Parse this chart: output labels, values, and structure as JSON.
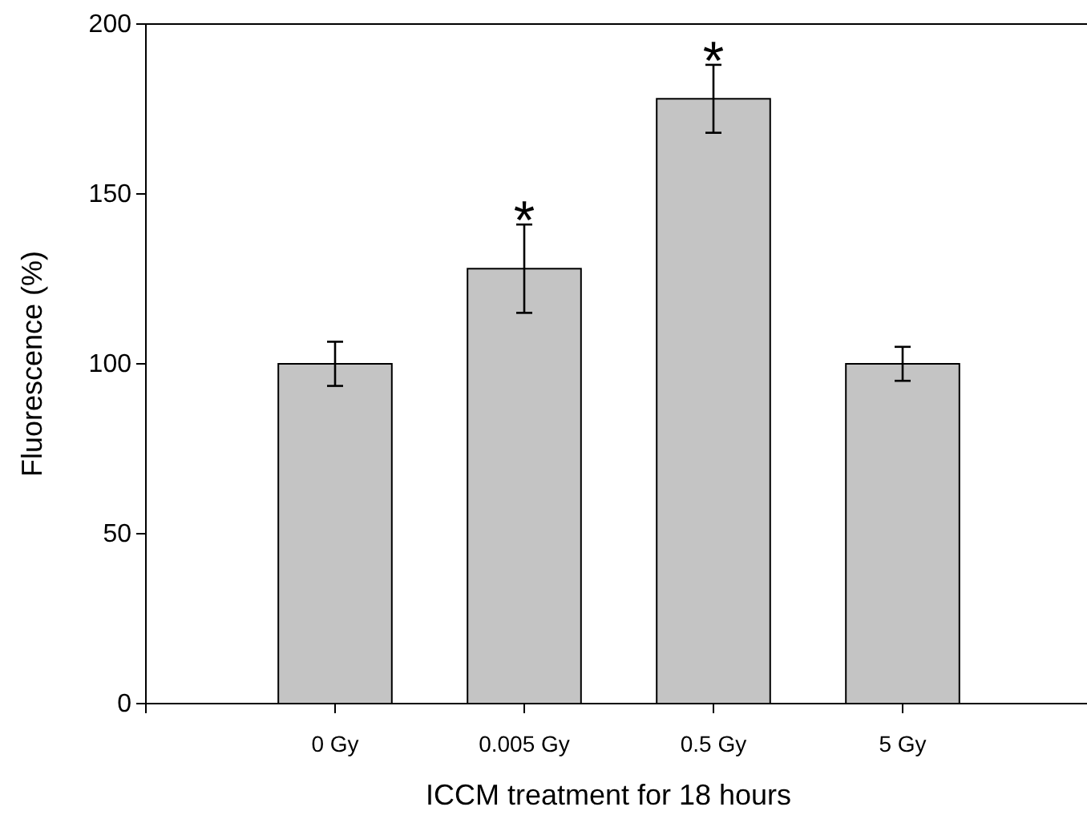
{
  "chart_data": {
    "type": "bar",
    "xlabel": "ICCM treatment for 18 hours",
    "ylabel": "Fluorescence (%)",
    "categories": [
      "0 Gy",
      "0.005 Gy",
      "0.5 Gy",
      "5 Gy"
    ],
    "values": [
      100,
      128,
      178,
      100
    ],
    "errors": [
      6.5,
      13,
      10,
      5
    ],
    "color": "#c4c4c4",
    "ylim": [
      0,
      200
    ],
    "yticks": [
      0,
      50,
      100,
      150,
      200
    ],
    "annotations": [
      {
        "text": "*",
        "x": "0.005 Gy",
        "y": 141
      },
      {
        "text": "*",
        "x": "0.5 Gy",
        "y": 188
      }
    ]
  }
}
